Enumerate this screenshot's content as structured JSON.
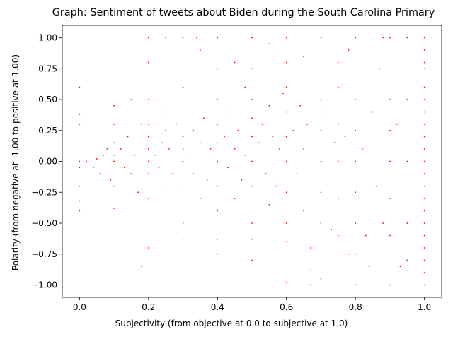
{
  "chart_data": {
    "type": "scatter",
    "title": "Graph: Sentiment of tweets about Biden during the South Carolina Primary",
    "xlabel": "Subjectivity (from objective at 0.0 to subjective at 1.0)",
    "ylabel": "Polarity (from negative at -1.00 to positive at 1.00)",
    "xlim": [
      -0.05,
      1.05
    ],
    "ylim": [
      -1.1,
      1.1
    ],
    "xticks": [
      0.0,
      0.2,
      0.4,
      0.6,
      0.8,
      1.0
    ],
    "xtick_labels": [
      "0.0",
      "0.2",
      "0.4",
      "0.6",
      "0.8",
      "1.0"
    ],
    "yticks": [
      -1.0,
      -0.75,
      -0.5,
      -0.25,
      0.0,
      0.25,
      0.5,
      0.75,
      1.0
    ],
    "ytick_labels": [
      "−1.00",
      "−0.75",
      "−0.50",
      "−0.25",
      "0.00",
      "0.25",
      "0.50",
      "0.75",
      "1.00"
    ],
    "grid": false,
    "marker_color": "#ff0000",
    "points": [
      [
        0.0,
        0.0
      ],
      [
        0.0,
        -0.05
      ],
      [
        0.0,
        -0.2
      ],
      [
        0.0,
        0.3
      ],
      [
        0.0,
        0.38
      ],
      [
        0.0,
        -0.32
      ],
      [
        0.0,
        -0.4
      ],
      [
        0.0,
        0.6
      ],
      [
        0.02,
        0.0
      ],
      [
        0.04,
        -0.05
      ],
      [
        0.05,
        0.02
      ],
      [
        0.06,
        -0.1
      ],
      [
        0.07,
        0.05
      ],
      [
        0.08,
        0.1
      ],
      [
        0.09,
        -0.15
      ],
      [
        0.1,
        0.0
      ],
      [
        0.1,
        0.15
      ],
      [
        0.1,
        0.3
      ],
      [
        0.1,
        0.45
      ],
      [
        0.1,
        -0.2
      ],
      [
        0.1,
        -0.38
      ],
      [
        0.1,
        0.05
      ],
      [
        0.12,
        0.1
      ],
      [
        0.13,
        -0.05
      ],
      [
        0.14,
        0.2
      ],
      [
        0.15,
        -0.1
      ],
      [
        0.15,
        0.5
      ],
      [
        0.16,
        0.05
      ],
      [
        0.17,
        -0.25
      ],
      [
        0.18,
        -0.85
      ],
      [
        0.18,
        0.3
      ],
      [
        0.2,
        0.0
      ],
      [
        0.2,
        0.1
      ],
      [
        0.2,
        0.2
      ],
      [
        0.2,
        0.3
      ],
      [
        0.2,
        0.5
      ],
      [
        0.2,
        0.8
      ],
      [
        0.2,
        1.0
      ],
      [
        0.2,
        -0.1
      ],
      [
        0.2,
        -0.3
      ],
      [
        0.2,
        -0.7
      ],
      [
        0.22,
        0.05
      ],
      [
        0.23,
        -0.05
      ],
      [
        0.24,
        0.15
      ],
      [
        0.25,
        0.25
      ],
      [
        0.25,
        0.4
      ],
      [
        0.25,
        1.0
      ],
      [
        0.25,
        -0.2
      ],
      [
        0.26,
        0.1
      ],
      [
        0.27,
        -0.1
      ],
      [
        0.28,
        0.3
      ],
      [
        0.3,
        0.0
      ],
      [
        0.3,
        0.1
      ],
      [
        0.3,
        0.2
      ],
      [
        0.3,
        0.4
      ],
      [
        0.3,
        0.6
      ],
      [
        0.3,
        1.0
      ],
      [
        0.3,
        -0.2
      ],
      [
        0.3,
        -0.5
      ],
      [
        0.3,
        -0.63
      ],
      [
        0.32,
        0.05
      ],
      [
        0.33,
        0.25
      ],
      [
        0.33,
        -0.1
      ],
      [
        0.34,
        1.0
      ],
      [
        0.35,
        0.15
      ],
      [
        0.35,
        -0.3
      ],
      [
        0.35,
        0.9
      ],
      [
        0.36,
        0.35
      ],
      [
        0.37,
        -0.15
      ],
      [
        0.38,
        0.1
      ],
      [
        0.4,
        0.0
      ],
      [
        0.4,
        0.15
      ],
      [
        0.4,
        0.3
      ],
      [
        0.4,
        0.5
      ],
      [
        0.4,
        0.75
      ],
      [
        0.4,
        1.0
      ],
      [
        0.4,
        -0.2
      ],
      [
        0.4,
        -0.4
      ],
      [
        0.4,
        -0.63
      ],
      [
        0.4,
        -0.75
      ],
      [
        0.42,
        0.2
      ],
      [
        0.43,
        -0.05
      ],
      [
        0.44,
        0.4
      ],
      [
        0.45,
        0.1
      ],
      [
        0.45,
        -0.3
      ],
      [
        0.45,
        0.8
      ],
      [
        0.46,
        0.25
      ],
      [
        0.47,
        -0.15
      ],
      [
        0.48,
        0.05
      ],
      [
        0.48,
        0.6
      ],
      [
        0.5,
        0.0
      ],
      [
        0.5,
        0.2
      ],
      [
        0.5,
        0.35
      ],
      [
        0.5,
        0.5
      ],
      [
        0.5,
        0.75
      ],
      [
        0.5,
        1.0
      ],
      [
        0.5,
        -0.2
      ],
      [
        0.5,
        -0.5
      ],
      [
        0.5,
        -0.63
      ],
      [
        0.5,
        -0.8
      ],
      [
        0.52,
        0.15
      ],
      [
        0.53,
        0.3
      ],
      [
        0.54,
        -0.1
      ],
      [
        0.55,
        0.45
      ],
      [
        0.55,
        -0.35
      ],
      [
        0.55,
        0.95
      ],
      [
        0.56,
        0.2
      ],
      [
        0.57,
        -0.2
      ],
      [
        0.58,
        0.1
      ],
      [
        0.59,
        0.55
      ],
      [
        0.6,
        0.0
      ],
      [
        0.6,
        0.2
      ],
      [
        0.6,
        0.4
      ],
      [
        0.6,
        0.6
      ],
      [
        0.6,
        0.8
      ],
      [
        0.6,
        1.0
      ],
      [
        0.6,
        -0.25
      ],
      [
        0.6,
        -0.5
      ],
      [
        0.6,
        -0.65
      ],
      [
        0.6,
        -0.98
      ],
      [
        0.62,
        0.25
      ],
      [
        0.63,
        -0.1
      ],
      [
        0.64,
        0.45
      ],
      [
        0.65,
        0.1
      ],
      [
        0.65,
        -0.4
      ],
      [
        0.65,
        0.85
      ],
      [
        0.66,
        0.3
      ],
      [
        0.67,
        -0.7
      ],
      [
        0.67,
        -0.88
      ],
      [
        0.67,
        -1.0
      ],
      [
        0.7,
        0.0
      ],
      [
        0.7,
        0.25
      ],
      [
        0.7,
        0.5
      ],
      [
        0.7,
        1.0
      ],
      [
        0.7,
        -0.25
      ],
      [
        0.7,
        -0.5
      ],
      [
        0.7,
        -0.95
      ],
      [
        0.72,
        0.4
      ],
      [
        0.73,
        -0.55
      ],
      [
        0.74,
        0.15
      ],
      [
        0.75,
        0.0
      ],
      [
        0.75,
        0.3
      ],
      [
        0.75,
        0.6
      ],
      [
        0.75,
        0.8
      ],
      [
        0.75,
        -0.3
      ],
      [
        0.75,
        -0.6
      ],
      [
        0.75,
        -0.75
      ],
      [
        0.77,
        0.2
      ],
      [
        0.78,
        -0.75
      ],
      [
        0.78,
        0.9
      ],
      [
        0.8,
        0.0
      ],
      [
        0.8,
        0.25
      ],
      [
        0.8,
        0.5
      ],
      [
        0.8,
        1.0
      ],
      [
        0.8,
        -0.25
      ],
      [
        0.8,
        -0.5
      ],
      [
        0.8,
        -0.75
      ],
      [
        0.8,
        -1.0
      ],
      [
        0.82,
        0.1
      ],
      [
        0.83,
        -0.6
      ],
      [
        0.84,
        -0.85
      ],
      [
        0.85,
        0.4
      ],
      [
        0.86,
        -0.2
      ],
      [
        0.87,
        0.75
      ],
      [
        0.88,
        -0.5
      ],
      [
        0.88,
        1.0
      ],
      [
        0.9,
        0.0
      ],
      [
        0.9,
        0.25
      ],
      [
        0.9,
        0.5
      ],
      [
        0.9,
        1.0
      ],
      [
        0.9,
        -0.3
      ],
      [
        0.9,
        -0.6
      ],
      [
        0.9,
        -1.0
      ],
      [
        0.92,
        0.3
      ],
      [
        0.93,
        -0.85
      ],
      [
        0.95,
        0.0
      ],
      [
        0.95,
        0.5
      ],
      [
        0.95,
        1.0
      ],
      [
        0.95,
        -0.5
      ],
      [
        0.95,
        -0.8
      ],
      [
        1.0,
        0.0
      ],
      [
        1.0,
        0.1
      ],
      [
        1.0,
        0.2
      ],
      [
        1.0,
        0.3
      ],
      [
        1.0,
        0.4
      ],
      [
        1.0,
        0.5
      ],
      [
        1.0,
        0.6
      ],
      [
        1.0,
        0.75
      ],
      [
        1.0,
        0.8
      ],
      [
        1.0,
        0.9
      ],
      [
        1.0,
        1.0
      ],
      [
        1.0,
        -0.1
      ],
      [
        1.0,
        -0.2
      ],
      [
        1.0,
        -0.3
      ],
      [
        1.0,
        -0.4
      ],
      [
        1.0,
        -0.5
      ],
      [
        1.0,
        -0.6
      ],
      [
        1.0,
        -0.7
      ],
      [
        1.0,
        -0.8
      ],
      [
        1.0,
        -0.9
      ],
      [
        1.0,
        -1.0
      ]
    ]
  }
}
